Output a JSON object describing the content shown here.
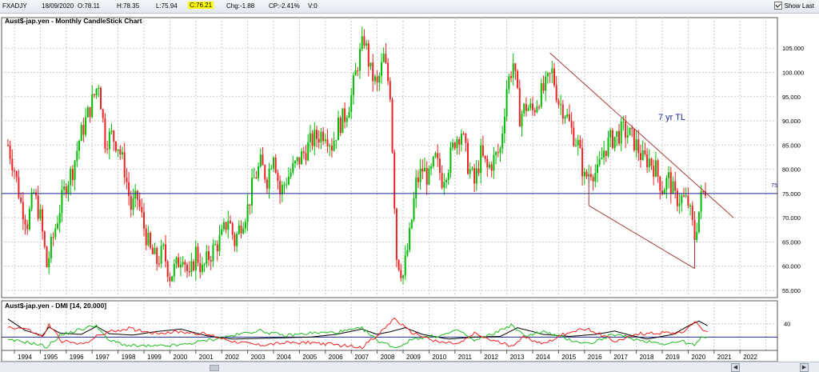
{
  "header": {
    "symbol": "FXADJY",
    "date": "18/09/2020",
    "open": "O:78.11",
    "high": "H:78.35",
    "low": "L:75.94",
    "close": "C:76.21",
    "change": "Chg:-1.88",
    "change_pct": "CP:-2.41%",
    "volume": "V:0",
    "show_last_label": "Show Last",
    "show_last_checked": true
  },
  "colors": {
    "up": "#00bb00",
    "down": "#ee2222",
    "hline": "#1c2a8a",
    "trend": "#a33a3a",
    "adx": "#000000",
    "plus_di": "#22bb22",
    "minus_di": "#ee2222"
  },
  "chart_data": [
    {
      "type": "candlestick",
      "title": "Aust$-jap.yen - Monthly CandleStick Chart",
      "x_labels": [
        "1994",
        "1995",
        "1996",
        "1997",
        "1998",
        "1999",
        "2000",
        "2001",
        "2002",
        "2003",
        "2004",
        "2005",
        "2006",
        "2007",
        "2008",
        "2009",
        "2010",
        "2011",
        "2012",
        "2013",
        "2014",
        "2015",
        "2016",
        "2017",
        "2018",
        "2019",
        "2020",
        "2021",
        "2022"
      ],
      "y_ticks": [
        "105.000",
        "100.000",
        "95.000",
        "90.000",
        "85.000",
        "80.000",
        "75.000",
        "70.000",
        "65.000",
        "60.000",
        "55.000"
      ],
      "ylim": [
        53.5,
        109
      ],
      "grid": true,
      "closes": [
        [
          "1993-10",
          85
        ],
        [
          "1994-01",
          80
        ],
        [
          "1994-04",
          73
        ],
        [
          "1994-07",
          69
        ],
        [
          "1994-10",
          75
        ],
        [
          "1995-01",
          70
        ],
        [
          "1995-04",
          60
        ],
        [
          "1995-07",
          66
        ],
        [
          "1995-10",
          72
        ],
        [
          "1996-01",
          77
        ],
        [
          "1996-04",
          80
        ],
        [
          "1996-07",
          86
        ],
        [
          "1996-10",
          90
        ],
        [
          "1997-01",
          94
        ],
        [
          "1997-04",
          98
        ],
        [
          "1997-07",
          86
        ],
        [
          "1997-10",
          87
        ],
        [
          "1998-01",
          85
        ],
        [
          "1998-04",
          80
        ],
        [
          "1998-07",
          72
        ],
        [
          "1998-10",
          74
        ],
        [
          "1999-01",
          68
        ],
        [
          "1999-04",
          63
        ],
        [
          "1999-07",
          61
        ],
        [
          "1999-10",
          63
        ],
        [
          "2000-01",
          58
        ],
        [
          "2000-04",
          60
        ],
        [
          "2000-07",
          63
        ],
        [
          "2000-10",
          57
        ],
        [
          "2001-01",
          63
        ],
        [
          "2001-04",
          59
        ],
        [
          "2001-07",
          62
        ],
        [
          "2001-10",
          64
        ],
        [
          "2002-01",
          66
        ],
        [
          "2002-04",
          70
        ],
        [
          "2002-07",
          65
        ],
        [
          "2002-10",
          69
        ],
        [
          "2003-01",
          72
        ],
        [
          "2003-04",
          78
        ],
        [
          "2003-07",
          81
        ],
        [
          "2003-10",
          78
        ],
        [
          "2004-01",
          84
        ],
        [
          "2004-04",
          75
        ],
        [
          "2004-07",
          78
        ],
        [
          "2004-10",
          80
        ],
        [
          "2005-01",
          82
        ],
        [
          "2005-04",
          84
        ],
        [
          "2005-07",
          86
        ],
        [
          "2005-10",
          87
        ],
        [
          "2006-01",
          88
        ],
        [
          "2006-04",
          85
        ],
        [
          "2006-07",
          89
        ],
        [
          "2006-10",
          91
        ],
        [
          "2007-01",
          95
        ],
        [
          "2007-04",
          102
        ],
        [
          "2007-07",
          107
        ],
        [
          "2007-10",
          100
        ],
        [
          "2008-01",
          97
        ],
        [
          "2008-04",
          103
        ],
        [
          "2008-07",
          96
        ],
        [
          "2008-10",
          62
        ],
        [
          "2009-01",
          58
        ],
        [
          "2009-04",
          66
        ],
        [
          "2009-07",
          77
        ],
        [
          "2009-10",
          80
        ],
        [
          "2010-01",
          78
        ],
        [
          "2010-04",
          82
        ],
        [
          "2010-07",
          78
        ],
        [
          "2010-10",
          81
        ],
        [
          "2011-01",
          86
        ],
        [
          "2011-04",
          88
        ],
        [
          "2011-07",
          81
        ],
        [
          "2011-10",
          77
        ],
        [
          "2012-01",
          83
        ],
        [
          "2012-04",
          80
        ],
        [
          "2012-07",
          82
        ],
        [
          "2012-10",
          84
        ],
        [
          "2013-01",
          97
        ],
        [
          "2013-04",
          102
        ],
        [
          "2013-07",
          91
        ],
        [
          "2013-10",
          93
        ],
        [
          "2014-01",
          92
        ],
        [
          "2014-04",
          95
        ],
        [
          "2014-07",
          97
        ],
        [
          "2014-10",
          100
        ],
        [
          "2015-01",
          94
        ],
        [
          "2015-04",
          92
        ],
        [
          "2015-07",
          88
        ],
        [
          "2015-10",
          85
        ],
        [
          "2016-01",
          78
        ],
        [
          "2016-04",
          80
        ],
        [
          "2016-07",
          79
        ],
        [
          "2016-10",
          84
        ],
        [
          "2017-01",
          86
        ],
        [
          "2017-04",
          87
        ],
        [
          "2017-07",
          88
        ],
        [
          "2017-10",
          87
        ],
        [
          "2018-01",
          85
        ],
        [
          "2018-04",
          82
        ],
        [
          "2018-07",
          82
        ],
        [
          "2018-10",
          80
        ],
        [
          "2019-01",
          76
        ],
        [
          "2019-04",
          78
        ],
        [
          "2019-07",
          74
        ],
        [
          "2019-10",
          74
        ],
        [
          "2020-01",
          73
        ],
        [
          "2020-04",
          66
        ],
        [
          "2020-07",
          74
        ],
        [
          "2020-10",
          77
        ]
      ],
      "hline": {
        "value": 75,
        "label": "75"
      },
      "trendlines": [
        {
          "from": [
            "2014-09",
            104
          ],
          "to": [
            "2021-10",
            70
          ]
        },
        {
          "from": [
            "2016-03",
            72.5
          ],
          "to": [
            "2020-04",
            59.5
          ]
        }
      ],
      "annotation": {
        "text": "7 yr TL"
      }
    },
    {
      "type": "line",
      "title": "Aust$-jap.yen - DMI [14, 20.000]",
      "y_ticks": [
        "40"
      ],
      "ylim": [
        0,
        60
      ],
      "hline": 20,
      "series": [
        {
          "role": "adx",
          "points": [
            [
              "1993-10",
              47
            ],
            [
              "1994-06",
              30
            ],
            [
              "1995-02",
              22
            ],
            [
              "1995-05",
              35
            ],
            [
              "1995-10",
              26
            ],
            [
              "1996-08",
              24
            ],
            [
              "1997-03",
              36
            ],
            [
              "1997-09",
              25
            ],
            [
              "1998-08",
              23
            ],
            [
              "1999-06",
              28
            ],
            [
              "2000-06",
              32
            ],
            [
              "2001-06",
              22
            ],
            [
              "2002-06",
              17
            ],
            [
              "2003-06",
              18
            ],
            [
              "2004-06",
              19
            ],
            [
              "2005-06",
              20
            ],
            [
              "2006-06",
              24
            ],
            [
              "2007-06",
              32
            ],
            [
              "2008-01",
              24
            ],
            [
              "2008-07",
              28
            ],
            [
              "2009-02",
              34
            ],
            [
              "2009-10",
              24
            ],
            [
              "2010-10",
              17
            ],
            [
              "2011-10",
              20
            ],
            [
              "2012-10",
              21
            ],
            [
              "2013-06",
              34
            ],
            [
              "2014-06",
              24
            ],
            [
              "2015-06",
              21
            ],
            [
              "2016-06",
              24
            ],
            [
              "2017-03",
              29
            ],
            [
              "2017-10",
              23
            ],
            [
              "2018-06",
              17
            ],
            [
              "2019-06",
              24
            ],
            [
              "2020-03",
              40
            ],
            [
              "2020-06",
              44
            ],
            [
              "2020-10",
              37
            ]
          ]
        },
        {
          "role": "plus_di",
          "points": [
            [
              "1993-10",
              15
            ],
            [
              "1994-06",
              13
            ],
            [
              "1995-01",
              8
            ],
            [
              "1995-04",
              5
            ],
            [
              "1995-10",
              22
            ],
            [
              "1996-06",
              30
            ],
            [
              "1997-03",
              38
            ],
            [
              "1997-08",
              16
            ],
            [
              "1998-06",
              7
            ],
            [
              "1999-06",
              6
            ],
            [
              "2000-06",
              8
            ],
            [
              "2001-06",
              15
            ],
            [
              "2002-06",
              22
            ],
            [
              "2003-06",
              30
            ],
            [
              "2004-06",
              22
            ],
            [
              "2005-06",
              26
            ],
            [
              "2006-06",
              27
            ],
            [
              "2007-06",
              33
            ],
            [
              "2008-01",
              15
            ],
            [
              "2008-10",
              4
            ],
            [
              "2009-06",
              18
            ],
            [
              "2010-06",
              22
            ],
            [
              "2011-03",
              30
            ],
            [
              "2011-10",
              14
            ],
            [
              "2012-06",
              24
            ],
            [
              "2013-03",
              38
            ],
            [
              "2013-09",
              22
            ],
            [
              "2014-06",
              28
            ],
            [
              "2015-06",
              16
            ],
            [
              "2016-03",
              10
            ],
            [
              "2017-03",
              24
            ],
            [
              "2018-03",
              15
            ],
            [
              "2019-03",
              10
            ],
            [
              "2019-10",
              14
            ],
            [
              "2020-04",
              7
            ],
            [
              "2020-08",
              22
            ],
            [
              "2020-10",
              20
            ]
          ]
        },
        {
          "role": "minus_di",
          "points": [
            [
              "1993-10",
              35
            ],
            [
              "1994-06",
              33
            ],
            [
              "1995-02",
              20
            ],
            [
              "1995-05",
              38
            ],
            [
              "1995-11",
              14
            ],
            [
              "1996-08",
              9
            ],
            [
              "1997-04",
              22
            ],
            [
              "1997-09",
              28
            ],
            [
              "1998-06",
              33
            ],
            [
              "1999-06",
              26
            ],
            [
              "2000-06",
              28
            ],
            [
              "2001-06",
              24
            ],
            [
              "2002-06",
              14
            ],
            [
              "2003-06",
              8
            ],
            [
              "2004-06",
              11
            ],
            [
              "2005-06",
              12
            ],
            [
              "2006-06",
              8
            ],
            [
              "2007-06",
              5
            ],
            [
              "2008-02",
              25
            ],
            [
              "2008-09",
              48
            ],
            [
              "2009-04",
              28
            ],
            [
              "2010-06",
              12
            ],
            [
              "2011-03",
              10
            ],
            [
              "2011-10",
              25
            ],
            [
              "2012-06",
              15
            ],
            [
              "2013-03",
              7
            ],
            [
              "2013-09",
              20
            ],
            [
              "2014-06",
              10
            ],
            [
              "2015-06",
              28
            ],
            [
              "2016-03",
              32
            ],
            [
              "2017-03",
              14
            ],
            [
              "2018-03",
              25
            ],
            [
              "2019-03",
              27
            ],
            [
              "2019-10",
              26
            ],
            [
              "2020-04",
              44
            ],
            [
              "2020-08",
              30
            ],
            [
              "2020-10",
              28
            ]
          ]
        }
      ]
    }
  ],
  "scrollbar": {
    "nav_left": "◀",
    "nav_right": "▶"
  }
}
